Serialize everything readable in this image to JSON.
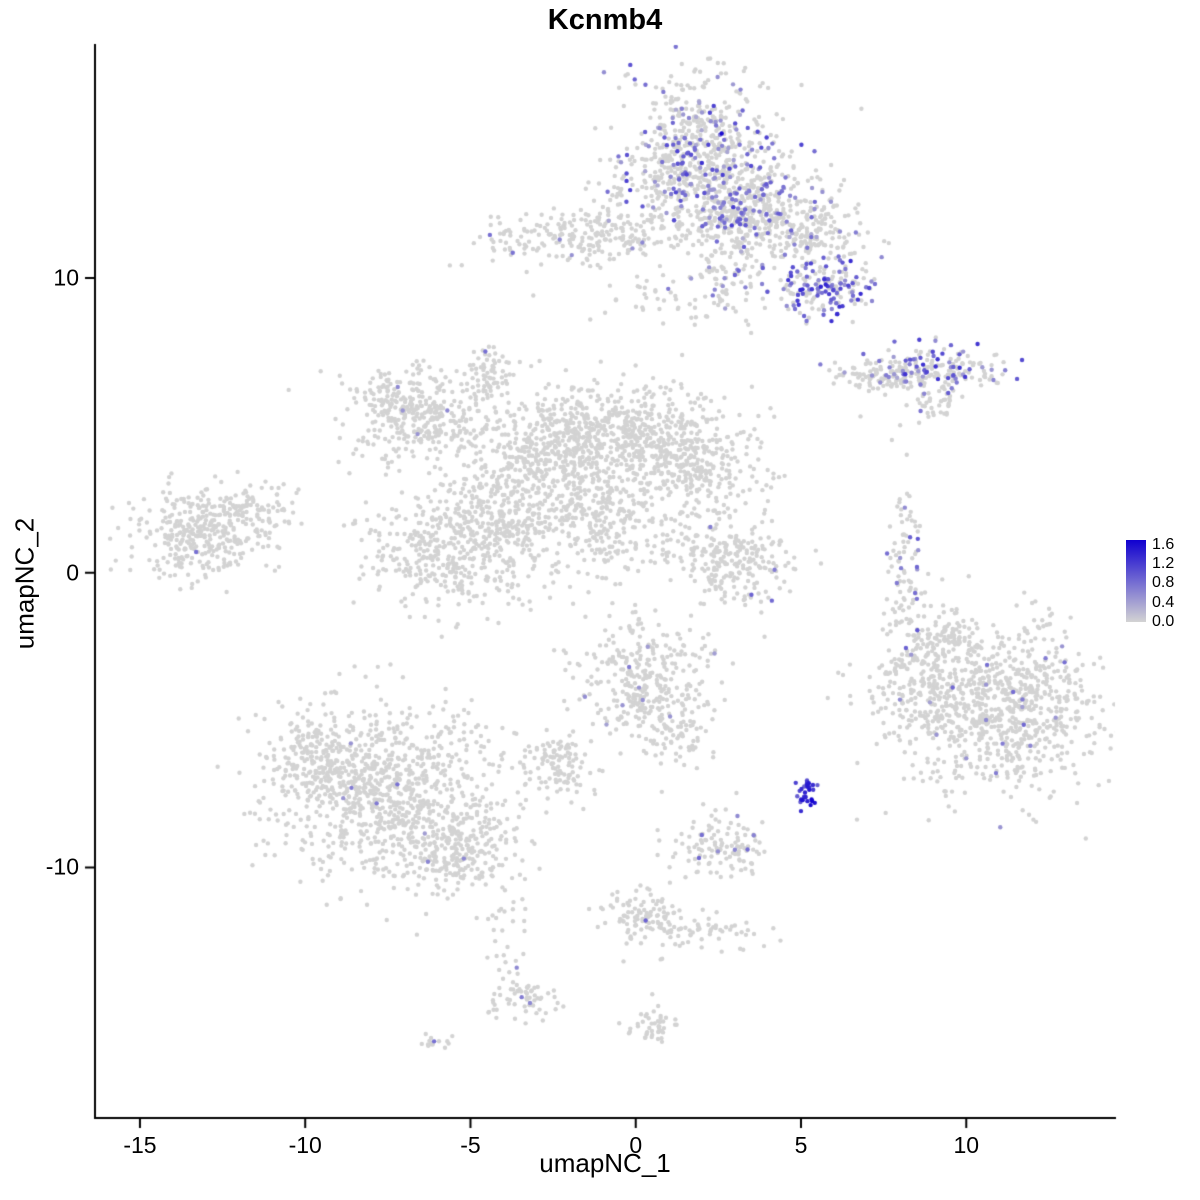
{
  "title": "Kcnmb4",
  "x_axis": {
    "label": "umapNC_1",
    "ticks": [
      -15,
      -10,
      -5,
      0,
      5,
      10
    ],
    "range": [
      -16.36,
      14.5
    ]
  },
  "y_axis": {
    "label": "umapNC_2",
    "ticks": [
      -10,
      0,
      10
    ],
    "range": [
      -18.5,
      17.9
    ]
  },
  "legend": {
    "labels": [
      "1.6",
      "1.2",
      "0.8",
      "0.4",
      "0.0"
    ],
    "values": [
      1.6,
      1.2,
      0.8,
      0.4,
      0.0
    ],
    "bar_max": 1.7,
    "low_color": "#d3d3d3",
    "high_color": "#1000d0"
  },
  "chart_data": {
    "type": "scatter",
    "title": "Kcnmb4",
    "xlabel": "umapNC_1",
    "ylabel": "umapNC_2",
    "xlim": [
      -16.36,
      14.5
    ],
    "ylim": [
      -18.5,
      17.9
    ],
    "grid": false,
    "point_color_low": "#d3d3d3",
    "point_color_high": "#1000d0",
    "value_max": 1.7,
    "clusters": [
      {
        "name": "top-main",
        "cx": 1.9,
        "cy": 14.3,
        "sx": 1.15,
        "sy": 1.35,
        "n": 550,
        "frac": 0.22,
        "vmin": 0.3,
        "vmax": 1.2
      },
      {
        "name": "top-base",
        "cx": 2.4,
        "cy": 13.0,
        "sx": 1.6,
        "sy": 0.8,
        "n": 250,
        "frac": 0.18,
        "vmin": 0.3,
        "vmax": 1.0
      },
      {
        "name": "top-right",
        "cx": 3.6,
        "cy": 12.2,
        "sx": 1.1,
        "sy": 0.75,
        "n": 260,
        "frac": 0.15,
        "vmin": 0.3,
        "vmax": 1.0
      },
      {
        "name": "top-right-arm",
        "cx": 5.1,
        "cy": 11.5,
        "sx": 0.9,
        "sy": 0.6,
        "n": 180,
        "frac": 0.1,
        "vmin": 0.3,
        "vmax": 0.9
      },
      {
        "name": "top-neck",
        "cx": 2.9,
        "cy": 10.3,
        "sx": 0.5,
        "sy": 1.0,
        "n": 90,
        "frac": 0.12,
        "vmin": 0.3,
        "vmax": 0.9
      },
      {
        "name": "top-right-blob",
        "cx": 5.7,
        "cy": 9.6,
        "sx": 0.75,
        "sy": 0.5,
        "n": 170,
        "frac": 0.5,
        "vmin": 0.5,
        "vmax": 1.4
      },
      {
        "name": "top-left-arm",
        "cx": -1.7,
        "cy": 11.4,
        "sx": 1.5,
        "sy": 0.5,
        "n": 240,
        "frac": 0.03,
        "vmin": 0.3,
        "vmax": 0.8
      },
      {
        "name": "top-sparse",
        "cx": 1.2,
        "cy": 9.3,
        "sx": 1.1,
        "sy": 0.6,
        "n": 45,
        "frac": 0.15,
        "vmin": 0.3,
        "vmax": 0.8
      },
      {
        "name": "right-strip-left",
        "cx": 7.4,
        "cy": 6.7,
        "sx": 0.75,
        "sy": 0.3,
        "n": 110,
        "frac": 0.12,
        "vmin": 0.3,
        "vmax": 0.9
      },
      {
        "name": "right-strip-right",
        "cx": 9.3,
        "cy": 6.9,
        "sx": 0.85,
        "sy": 0.4,
        "n": 150,
        "frac": 0.4,
        "vmin": 0.4,
        "vmax": 1.3
      },
      {
        "name": "right-strip-sub",
        "cx": 8.9,
        "cy": 5.7,
        "sx": 0.4,
        "sy": 0.3,
        "n": 35,
        "frac": 0.1,
        "vmin": 0.3,
        "vmax": 0.8
      },
      {
        "name": "center-knob",
        "cx": -4.5,
        "cy": 6.8,
        "sx": 0.45,
        "sy": 0.45,
        "n": 70,
        "frac": 0,
        "vmin": 0,
        "vmax": 0
      },
      {
        "name": "center-left",
        "cx": -6.5,
        "cy": 5.2,
        "sx": 1.0,
        "sy": 0.75,
        "n": 280,
        "frac": 0,
        "vmin": 0,
        "vmax": 0
      },
      {
        "name": "center-left-tip",
        "cx": -7.3,
        "cy": 5.9,
        "sx": 0.5,
        "sy": 0.5,
        "n": 80,
        "frac": 0,
        "vmin": 0,
        "vmax": 0
      },
      {
        "name": "center-a",
        "cx": -2.6,
        "cy": 4.4,
        "sx": 1.2,
        "sy": 0.95,
        "n": 380,
        "frac": 0,
        "vmin": 0,
        "vmax": 0
      },
      {
        "name": "center-b",
        "cx": 0.1,
        "cy": 4.7,
        "sx": 1.4,
        "sy": 0.85,
        "n": 480,
        "frac": 0,
        "vmin": 0,
        "vmax": 0
      },
      {
        "name": "center-c",
        "cx": 1.9,
        "cy": 3.5,
        "sx": 0.95,
        "sy": 0.8,
        "n": 220,
        "frac": 0,
        "vmin": 0,
        "vmax": 0
      },
      {
        "name": "center-lower-left",
        "cx": -5.6,
        "cy": 0.8,
        "sx": 1.25,
        "sy": 1.05,
        "n": 420,
        "frac": 0,
        "vmin": 0,
        "vmax": 0
      },
      {
        "name": "center-mid",
        "cx": -3.7,
        "cy": 2.3,
        "sx": 1.0,
        "sy": 0.9,
        "n": 260,
        "frac": 0,
        "vmin": 0,
        "vmax": 0
      },
      {
        "name": "center-d",
        "cx": -1.0,
        "cy": 2.0,
        "sx": 1.0,
        "sy": 1.0,
        "n": 260,
        "frac": 0,
        "vmin": 0,
        "vmax": 0
      },
      {
        "name": "center-streak",
        "cx": 1.5,
        "cy": 0.8,
        "sx": 1.3,
        "sy": 0.45,
        "n": 110,
        "rot": -0.25,
        "frac": 0,
        "vmin": 0,
        "vmax": 0
      },
      {
        "name": "far-left",
        "cx": -13.2,
        "cy": 1.3,
        "sx": 1.05,
        "sy": 0.8,
        "n": 330,
        "frac": 0,
        "vmin": 0,
        "vmax": 0
      },
      {
        "name": "far-left-arm",
        "cx": -11.7,
        "cy": 2.0,
        "sx": 0.7,
        "sy": 0.45,
        "n": 90,
        "frac": 0,
        "vmin": 0,
        "vmax": 0
      },
      {
        "name": "mid-small",
        "cx": 3.1,
        "cy": 0.4,
        "sx": 0.75,
        "sy": 0.75,
        "n": 160,
        "frac": 0.02,
        "vmin": 0.4,
        "vmax": 0.9
      },
      {
        "name": "right-sliver",
        "cx": 8.2,
        "cy": 0.2,
        "sx": 0.28,
        "sy": 1.3,
        "n": 85,
        "frac": 0.12,
        "vmin": 0.4,
        "vmax": 1.0
      },
      {
        "name": "bottom-right-main",
        "cx": 11.0,
        "cy": -4.6,
        "sx": 1.6,
        "sy": 1.45,
        "n": 850,
        "frac": 0.012,
        "vmin": 0.4,
        "vmax": 0.9
      },
      {
        "name": "bottom-right-arm",
        "cx": 8.6,
        "cy": -3.6,
        "sx": 0.8,
        "sy": 0.85,
        "n": 180,
        "frac": 0.01,
        "vmin": 0.4,
        "vmax": 0.8
      },
      {
        "name": "bottom-right-knob",
        "cx": 9.4,
        "cy": -2.2,
        "sx": 0.5,
        "sy": 0.45,
        "n": 70,
        "frac": 0,
        "vmin": 0,
        "vmax": 0
      },
      {
        "name": "mid-bottom",
        "cx": 0.2,
        "cy": -3.6,
        "sx": 0.95,
        "sy": 1.15,
        "n": 320,
        "frac": 0.015,
        "vmin": 0.4,
        "vmax": 0.9
      },
      {
        "name": "mid-bottom-arm",
        "cx": 1.1,
        "cy": -5.3,
        "sx": 0.5,
        "sy": 0.65,
        "n": 70,
        "frac": 0,
        "vmin": 0,
        "vmax": 0
      },
      {
        "name": "small-left-blob",
        "cx": -2.4,
        "cy": -6.6,
        "sx": 0.6,
        "sy": 0.5,
        "n": 110,
        "frac": 0,
        "vmin": 0,
        "vmax": 0
      },
      {
        "name": "bottom-left-main",
        "cx": -7.6,
        "cy": -7.4,
        "sx": 1.7,
        "sy": 1.4,
        "n": 900,
        "frac": 0.003,
        "vmin": 0.4,
        "vmax": 0.8
      },
      {
        "name": "bottom-left-ext",
        "cx": -5.4,
        "cy": -9.4,
        "sx": 0.9,
        "sy": 0.75,
        "n": 240,
        "frac": 0.008,
        "vmin": 0.4,
        "vmax": 0.8
      },
      {
        "name": "bottom-left-tip",
        "cx": -9.7,
        "cy": -6.3,
        "sx": 0.8,
        "sy": 0.7,
        "n": 150,
        "frac": 0,
        "vmin": 0,
        "vmax": 0
      },
      {
        "name": "dense-high",
        "cx": 5.15,
        "cy": -7.45,
        "sx": 0.18,
        "sy": 0.28,
        "n": 30,
        "frac": 1.0,
        "vmin": 0.9,
        "vmax": 1.7
      },
      {
        "name": "small-mid-bottom",
        "cx": 2.5,
        "cy": -9.2,
        "sx": 0.7,
        "sy": 0.5,
        "n": 120,
        "frac": 0.03,
        "vmin": 0.4,
        "vmax": 0.9
      },
      {
        "name": "streak-left",
        "cx": 0.3,
        "cy": -11.5,
        "sx": 0.6,
        "sy": 0.55,
        "n": 90,
        "frac": 0,
        "vmin": 0,
        "vmax": 0
      },
      {
        "name": "streak-right",
        "cx": 2.0,
        "cy": -12.1,
        "sx": 1.2,
        "sy": 0.35,
        "n": 70,
        "rot": -0.2,
        "frac": 0,
        "vmin": 0,
        "vmax": 0
      },
      {
        "name": "trail",
        "cx": -3.9,
        "cy": -12.3,
        "sx": 0.3,
        "sy": 1.1,
        "n": 35,
        "frac": 0,
        "vmin": 0,
        "vmax": 0
      },
      {
        "name": "trail-end",
        "cx": -3.4,
        "cy": -14.5,
        "sx": 0.55,
        "sy": 0.3,
        "n": 55,
        "frac": 0,
        "vmin": 0,
        "vmax": 0
      },
      {
        "name": "bottom-small",
        "cx": 0.6,
        "cy": -15.4,
        "sx": 0.4,
        "sy": 0.28,
        "n": 45,
        "frac": 0,
        "vmin": 0,
        "vmax": 0
      },
      {
        "name": "bottom-tiny",
        "cx": -6.1,
        "cy": -15.95,
        "sx": 0.22,
        "sy": 0.14,
        "n": 14,
        "frac": 0,
        "vmin": 0,
        "vmax": 0
      }
    ],
    "extra_points": [
      [
        -10.5,
        6.2
      ],
      [
        2.2,
        2.6
      ],
      [
        2.35,
        2.1
      ],
      [
        3.8,
        -1.35
      ],
      [
        8.0,
        5.0
      ],
      [
        7.75,
        4.5
      ],
      [
        8.2,
        4.0
      ],
      [
        6.8,
        5.3
      ],
      [
        0.2,
        9.0
      ],
      [
        -3.3,
        10.2
      ],
      [
        -3.1,
        9.4
      ],
      [
        -1.7,
        -4.3
      ],
      [
        0.6,
        -6.2
      ],
      [
        -1.1,
        -6.7
      ],
      [
        0.8,
        -13.1
      ],
      [
        0.5,
        -14.3
      ],
      [
        2.6,
        -0.9
      ],
      [
        7.6,
        -0.9
      ],
      [
        8.3,
        -1.6
      ]
    ],
    "expressed_points": [
      [
        2.6,
        14.9,
        1.6
      ],
      [
        2.0,
        13.9,
        1.3
      ],
      [
        2.95,
        12.4,
        1.2
      ],
      [
        3.0,
        10.1,
        0.9
      ],
      [
        5.6,
        9.7,
        1.4
      ],
      [
        5.85,
        9.45,
        1.2
      ],
      [
        5.5,
        9.4,
        1.0
      ],
      [
        -2.3,
        11.3,
        0.6
      ],
      [
        0.2,
        11.2,
        0.6
      ],
      [
        -0.1,
        11.0,
        0.5
      ],
      [
        -4.55,
        7.5,
        0.8
      ],
      [
        -7.2,
        6.3,
        0.6
      ],
      [
        -7.05,
        5.5,
        0.5
      ],
      [
        -6.6,
        4.7,
        0.5
      ],
      [
        -5.7,
        5.5,
        0.6
      ],
      [
        -13.3,
        0.7,
        0.8
      ],
      [
        4.2,
        0.1,
        0.7
      ],
      [
        3.5,
        -0.75,
        0.9
      ],
      [
        8.3,
        1.2,
        0.9
      ],
      [
        8.0,
        0.5,
        0.5
      ],
      [
        7.9,
        -0.35,
        0.7
      ],
      [
        9.8,
        6.95,
        1.3
      ],
      [
        9.45,
        6.6,
        1.1
      ],
      [
        10.1,
        6.9,
        0.9
      ],
      [
        12.4,
        -2.9,
        0.7
      ],
      [
        12.9,
        -2.5,
        0.5
      ],
      [
        10.6,
        -3.8,
        0.5
      ],
      [
        11.7,
        -4.3,
        0.7
      ],
      [
        10.6,
        -5.0,
        0.6
      ],
      [
        9.1,
        -5.5,
        0.5
      ],
      [
        11.1,
        -5.8,
        0.7
      ],
      [
        10.0,
        -6.3,
        0.5
      ],
      [
        10.9,
        -6.8,
        0.7
      ],
      [
        8.9,
        -4.4,
        0.4
      ],
      [
        -0.2,
        -3.2,
        0.7
      ],
      [
        0.1,
        -3.9,
        0.5
      ],
      [
        -0.4,
        -4.5,
        0.5
      ],
      [
        -8.6,
        -7.3,
        0.7
      ],
      [
        -8.85,
        -7.65,
        0.5
      ],
      [
        -5.2,
        -9.7,
        0.6
      ],
      [
        2.0,
        -8.9,
        0.8
      ],
      [
        3.0,
        -9.4,
        0.6
      ],
      [
        0.3,
        -11.8,
        0.9
      ],
      [
        -3.6,
        -13.4,
        0.6
      ],
      [
        -3.45,
        -14.4,
        0.7
      ],
      [
        -3.2,
        -14.6,
        0.6
      ],
      [
        -6.1,
        -15.9,
        0.8
      ]
    ]
  }
}
